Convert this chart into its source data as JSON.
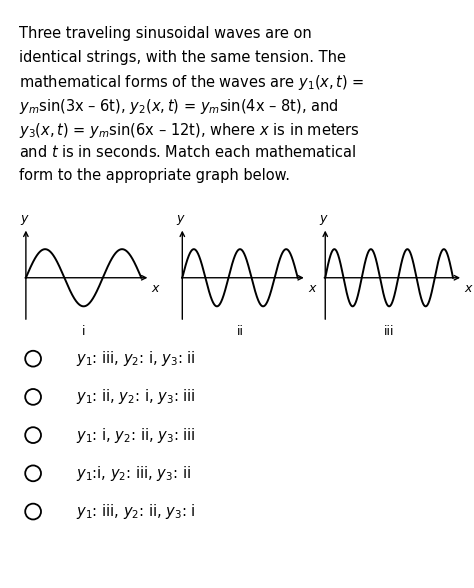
{
  "background_color": "#ffffff",
  "graph_labels": [
    "i",
    "ii",
    "iii"
  ],
  "options": [
    "y_1: iii, y_2: i, y_3: ii",
    "y_1: ii, y_2: i, y_3: iii",
    "y_1: i, y_2: ii, y_3: iii",
    "y_1:i, y_2: iii, y_3: ii",
    "y_1: iii, y_2: ii, y_3: i"
  ],
  "text_fontsize": 10.5,
  "option_fontsize": 10.5,
  "graph_cycles": [
    1.5,
    2.5,
    3.5
  ],
  "fig_width": 4.74,
  "fig_height": 5.88
}
